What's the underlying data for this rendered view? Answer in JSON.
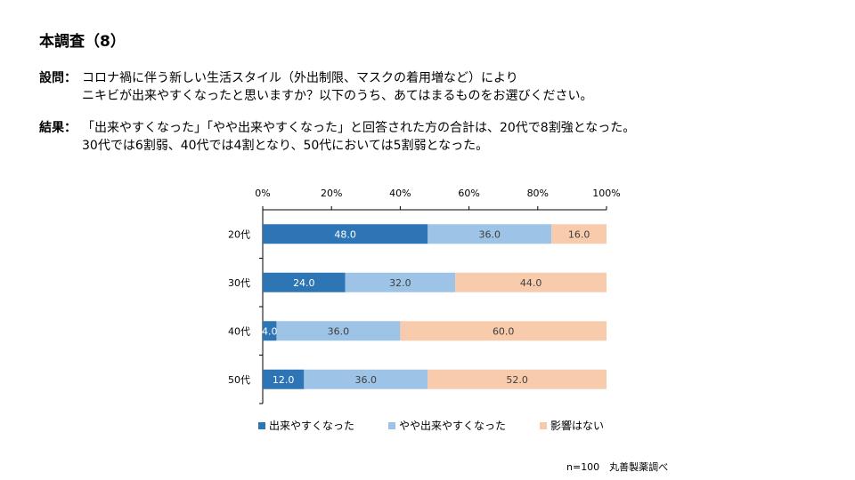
{
  "title": "本調査（8）",
  "question": {
    "label": "設問：",
    "line1": "コロナ禍に伴う新しい生活スタイル（外出制限、マスクの着用増など）により",
    "line2": "ニキビが出来やすくなったと思いますか？以下のうち、あてはまるものをお選びください。"
  },
  "result": {
    "label": "結果：",
    "line1": "「出来やすくなった」「やや出来やすくなった」と回答された方の合計は、20代で8割強となった。",
    "line2": "30代では6割弱、40代では4割となり、50代においては5割弱となった。"
  },
  "footer": "n=100　丸善製薬調べ",
  "colors": {
    "series1": "#2e75b6",
    "series2": "#9dc3e6",
    "series3": "#f8cbad",
    "axis": "#000000",
    "grid": "#d9d9d9"
  },
  "chart_data": {
    "type": "bar",
    "orientation": "horizontal",
    "stacked": "percent",
    "categories": [
      "20代",
      "30代",
      "40代",
      "50代"
    ],
    "series": [
      {
        "name": "出来やすくなった",
        "values": [
          48.0,
          24.0,
          4.0,
          12.0
        ]
      },
      {
        "name": "やや出来やすくなった",
        "values": [
          36.0,
          32.0,
          36.0,
          36.0
        ]
      },
      {
        "name": "影響はない",
        "values": [
          16.0,
          44.0,
          60.0,
          52.0
        ]
      }
    ],
    "x_ticks": [
      "0%",
      "20%",
      "40%",
      "60%",
      "80%",
      "100%"
    ],
    "xlim": [
      0,
      100
    ],
    "legend_position": "bottom",
    "data_label_format": "0.0"
  }
}
